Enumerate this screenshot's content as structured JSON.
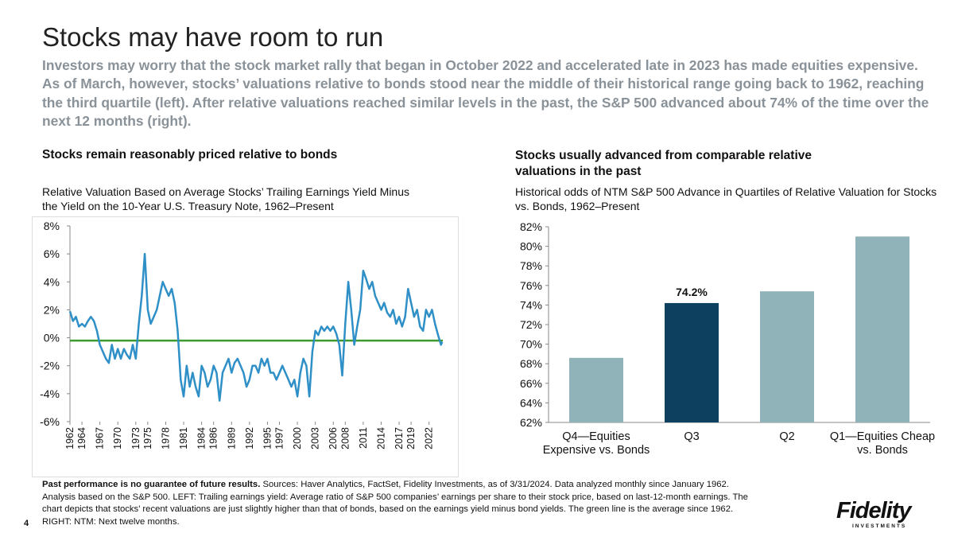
{
  "title": "Stocks may have room to run",
  "subtitle": "Investors may worry that the stock market rally that began in October 2022 and accelerated late in 2023 has made equities expensive. As of March, however, stocks’ valuations relative to bonds stood near the middle of their historical range going back to 1962, reaching the third quartile (left). After relative valuations reached similar levels in the past, the S&P 500 advanced about 74% of the time over the next 12 months (right).",
  "chart_data": [
    {
      "type": "line",
      "title": "Stocks remain reasonably priced relative to bonds",
      "subtitle": "Relative Valuation Based on Average Stocks’ Trailing Earnings Yield Minus the Yield on the 10-Year U.S. Treasury Note, 1962–Present",
      "x": [
        1962,
        1962.5,
        1963,
        1963.5,
        1964,
        1964.5,
        1965,
        1965.5,
        1966,
        1966.5,
        1967,
        1967.5,
        1968,
        1968.5,
        1969,
        1969.5,
        1970,
        1970.5,
        1971,
        1971.5,
        1972,
        1972.5,
        1973,
        1973.5,
        1974,
        1974.5,
        1975,
        1975.5,
        1976,
        1976.5,
        1977,
        1977.5,
        1978,
        1978.5,
        1979,
        1979.5,
        1980,
        1980.5,
        1981,
        1981.5,
        1982,
        1982.5,
        1983,
        1983.5,
        1984,
        1984.5,
        1985,
        1985.5,
        1986,
        1986.5,
        1987,
        1987.5,
        1988,
        1988.5,
        1989,
        1989.5,
        1990,
        1990.5,
        1991,
        1991.5,
        1992,
        1992.5,
        1993,
        1993.5,
        1994,
        1994.5,
        1995,
        1995.5,
        1996,
        1996.5,
        1997,
        1997.5,
        1998,
        1998.5,
        1999,
        1999.5,
        2000,
        2000.5,
        2001,
        2001.5,
        2002,
        2002.5,
        2003,
        2003.5,
        2004,
        2004.5,
        2005,
        2005.5,
        2006,
        2006.5,
        2007,
        2007.5,
        2008,
        2008.5,
        2009,
        2009.5,
        2010,
        2010.5,
        2011,
        2011.5,
        2012,
        2012.5,
        2013,
        2013.5,
        2014,
        2014.5,
        2015,
        2015.5,
        2016,
        2016.5,
        2017,
        2017.5,
        2018,
        2018.5,
        2019,
        2019.5,
        2020,
        2020.5,
        2021,
        2021.5,
        2022,
        2022.5,
        2023,
        2023.5,
        2024,
        2024.2
      ],
      "values": [
        1.9,
        1.2,
        1.5,
        0.8,
        1.0,
        0.8,
        1.2,
        1.5,
        1.2,
        0.5,
        -0.5,
        -1.0,
        -1.5,
        -1.8,
        -0.5,
        -1.5,
        -0.8,
        -1.5,
        -0.8,
        -1.2,
        -1.5,
        -0.5,
        -1.5,
        1.0,
        3.0,
        6.0,
        2.0,
        1.0,
        1.5,
        2.0,
        3.0,
        4.0,
        3.5,
        3.0,
        3.5,
        2.5,
        0.5,
        -3.0,
        -4.2,
        -2.0,
        -3.5,
        -2.5,
        -3.5,
        -4.2,
        -2.0,
        -2.5,
        -3.5,
        -3.0,
        -2.0,
        -2.5,
        -4.5,
        -2.5,
        -2.0,
        -1.5,
        -2.5,
        -1.8,
        -1.5,
        -2.0,
        -2.5,
        -3.5,
        -3.0,
        -2.0,
        -2.0,
        -2.5,
        -1.5,
        -2.0,
        -1.5,
        -2.5,
        -2.5,
        -3.0,
        -2.5,
        -2.0,
        -2.5,
        -3.0,
        -3.5,
        -3.0,
        -4.2,
        -2.5,
        -1.5,
        -2.0,
        -4.2,
        -1.0,
        0.5,
        0.2,
        0.8,
        0.5,
        0.8,
        0.5,
        0.8,
        0.3,
        -0.5,
        -2.7,
        1.0,
        4.0,
        2.0,
        -0.5,
        0.8,
        2.0,
        4.8,
        4.2,
        3.5,
        4.0,
        3.0,
        2.5,
        2.0,
        2.5,
        1.8,
        1.5,
        2.0,
        1.0,
        1.5,
        0.8,
        1.5,
        3.5,
        2.5,
        1.5,
        2.0,
        0.8,
        0.5,
        2.0,
        1.5,
        2.0,
        1.0,
        0.2,
        -0.5,
        -0.3
      ],
      "color": "#2f8fc7",
      "reference_line": {
        "value": -0.2,
        "color": "#3c9a2e"
      },
      "xlim": [
        1962,
        2024.3
      ],
      "xticks": [
        1962,
        1964,
        1967,
        1970,
        1973,
        1975,
        1978,
        1981,
        1984,
        1986,
        1989,
        1992,
        1995,
        1997,
        2000,
        2003,
        2006,
        2008,
        2011,
        2014,
        2017,
        2019,
        2022
      ],
      "ylim": [
        -6,
        8
      ],
      "yticks": [
        {
          "value": -6,
          "label": "-6%"
        },
        {
          "value": -4,
          "label": "-4%"
        },
        {
          "value": -2,
          "label": "-2%"
        },
        {
          "value": 0,
          "label": "0%"
        },
        {
          "value": 2,
          "label": "2%"
        },
        {
          "value": 4,
          "label": "4%"
        },
        {
          "value": 6,
          "label": "6%"
        },
        {
          "value": 8,
          "label": "8%"
        }
      ]
    },
    {
      "type": "bar",
      "title": "Stocks usually advanced from comparable relative valuations in the past",
      "subtitle": "Historical odds of NTM S&P 500 Advance in Quartiles of Relative Valuation for Stocks vs. Bonds, 1962–Present",
      "categories": [
        "Q4—Equities Expensive vs. Bonds",
        "Q3",
        "Q2",
        "Q1—Equities Cheap vs. Bonds"
      ],
      "values": [
        68.6,
        74.2,
        75.4,
        81.0
      ],
      "value_labels": [
        null,
        "74.2%",
        null,
        null
      ],
      "colors": [
        "#8fb3b9",
        "#0d3f5f",
        "#8fb3b9",
        "#8fb3b9"
      ],
      "ylim": [
        62,
        82
      ],
      "yticks": [
        {
          "value": 62,
          "label": "62%"
        },
        {
          "value": 64,
          "label": "64%"
        },
        {
          "value": 66,
          "label": "66%"
        },
        {
          "value": 68,
          "label": "68%"
        },
        {
          "value": 70,
          "label": "70%"
        },
        {
          "value": 72,
          "label": "72%"
        },
        {
          "value": 74,
          "label": "74%"
        },
        {
          "value": 76,
          "label": "76%"
        },
        {
          "value": 78,
          "label": "78%"
        },
        {
          "value": 80,
          "label": "80%"
        },
        {
          "value": 82,
          "label": "82%"
        }
      ]
    }
  ],
  "footer": {
    "bold": "Past performance is no guarantee of future results.",
    "text": "Sources: Haver Analytics, FactSet, Fidelity Investments, as of 3/31/2024. Data analyzed monthly since January 1962. Analysis based on the S&P 500. LEFT: Trailing earnings yield: Average ratio of S&P 500 companies’ earnings per share to their stock price, based on last-12-month earnings. The chart depicts that stocks’ recent valuations are just slightly higher than that of bonds, based on the earnings yield minus bond yields. The green line is the average since 1962. RIGHT: NTM: Next twelve months."
  },
  "page_number": "4",
  "logo": {
    "name": "Fidelity",
    "tagline": "INVESTMENTS"
  }
}
